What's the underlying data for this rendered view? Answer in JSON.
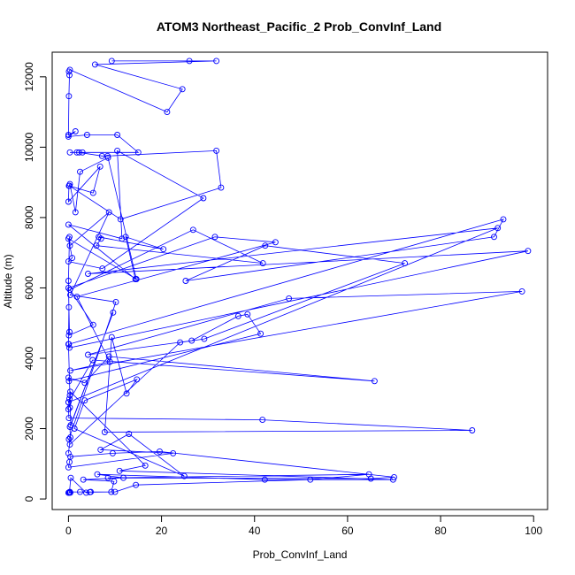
{
  "chart_data": {
    "type": "line",
    "title": "ATOM3 Northeast_Pacific_2 Prob_ConvInf_Land",
    "xlabel": "Prob_ConvInf_Land",
    "ylabel": "Altitude (m)",
    "xlim": [
      -3.5,
      103
    ],
    "ylim": [
      -300,
      12700
    ],
    "xticks": [
      0,
      20,
      40,
      60,
      80,
      100
    ],
    "yticks": [
      0,
      2000,
      4000,
      6000,
      8000,
      10000,
      12000
    ],
    "xtick_labels": [
      "0",
      "20",
      "40",
      "60",
      "80",
      "100"
    ],
    "ytick_labels": [
      "0",
      "2000",
      "4000",
      "6000",
      "8000",
      "10000",
      "12000"
    ],
    "grid": false,
    "legend": "none",
    "line_color": "#0000ff",
    "marker": "open-circle",
    "series": [
      {
        "x": [
          26,
          9.3,
          31.8,
          5.7,
          24.5,
          21.2,
          0.3,
          0.1,
          0.2,
          0.1,
          0,
          1.5,
          0,
          4,
          10.5,
          15,
          3,
          1.8,
          0.3,
          2.3,
          7.2,
          8.4,
          31.8,
          32.8,
          11.2,
          0.2,
          5.3,
          6.8,
          0,
          0.1,
          0.3,
          1.5,
          2.5,
          8.5,
          14.6,
          0,
          0.8,
          0,
          7.3,
          29,
          10.5,
          11.5,
          0,
          14.4,
          12.3,
          20.4,
          6.5,
          7,
          6,
          41.8,
          26.8,
          0.3,
          5.3,
          0.1,
          0.2,
          0,
          31.5,
          44.5,
          1.8,
          8.9,
          0.4,
          97.5,
          47.4,
          4.2,
          26.5,
          36.5,
          38.5,
          41.3,
          0.1,
          0,
          3.5,
          8.7,
          65.8,
          5.2,
          0,
          0.2,
          0.3,
          0,
          0.1,
          41.7,
          86.8,
          7.8,
          9.3,
          12.5,
          14.7,
          3.5,
          1.3,
          24.9,
          13,
          6.9,
          22.5,
          0,
          0.2,
          0.4,
          9.5,
          19.6,
          70,
          65,
          8.5,
          64.6,
          52,
          14.5,
          10,
          4.8,
          2.5,
          0.3,
          0.4,
          0,
          0.1,
          0.2,
          0.5,
          3.8,
          4.6,
          9.2,
          9.8,
          3.2,
          11.8,
          6.2,
          42.2,
          69.8,
          11,
          16.5,
          0.4,
          0.3,
          0,
          92.3,
          4.2,
          98.8,
          0.2,
          0.1,
          93.5,
          91.5,
          25.2,
          42.3,
          72.3,
          29.2,
          24,
          0.3,
          0.1,
          10.2,
          0.4,
          8.7,
          0.3,
          0.2,
          0,
          0.1,
          0,
          0.5,
          9.6,
          0.3,
          0.4,
          0
        ],
        "y": [
          12450,
          12450,
          12450,
          12350,
          11650,
          11000,
          12200,
          12150,
          12050,
          11450,
          10350,
          10450,
          10300,
          10350,
          10350,
          9850,
          9850,
          9850,
          9850,
          9850,
          9750,
          9750,
          9900,
          8850,
          7950,
          8900,
          8700,
          9450,
          8450,
          8900,
          8950,
          8150,
          9300,
          9700,
          6250,
          7400,
          6850,
          6750,
          6550,
          8550,
          9900,
          7400,
          7800,
          6250,
          7450,
          7100,
          7450,
          7400,
          7200,
          6700,
          7650,
          5950,
          4950,
          4650,
          4750,
          6000,
          7450,
          7300,
          5750,
          3900,
          3650,
          5900,
          5700,
          4100,
          4500,
          5200,
          5250,
          4700,
          3350,
          3450,
          3300,
          4050,
          3350,
          3950,
          2750,
          2850,
          2950,
          2550,
          2300,
          2250,
          1950,
          1900,
          4600,
          3000,
          3400,
          2800,
          2000,
          650,
          1850,
          1400,
          1300,
          900,
          1050,
          1200,
          1300,
          1350,
          620,
          580,
          600,
          700,
          550,
          400,
          200,
          200,
          200,
          200,
          180,
          175,
          180,
          195,
          600,
          180,
          195,
          200,
          500,
          550,
          600,
          700,
          550,
          550,
          800,
          950,
          3050,
          2600,
          2750,
          7700,
          6400,
          7050,
          4300,
          4400,
          7950,
          7450,
          6200,
          7200,
          6700,
          4550,
          4450,
          1550,
          1700,
          5600,
          5800,
          8150,
          7200,
          7450,
          6200,
          5450,
          4400,
          2100,
          5300,
          2050,
          1750,
          1300
        ]
      }
    ]
  }
}
